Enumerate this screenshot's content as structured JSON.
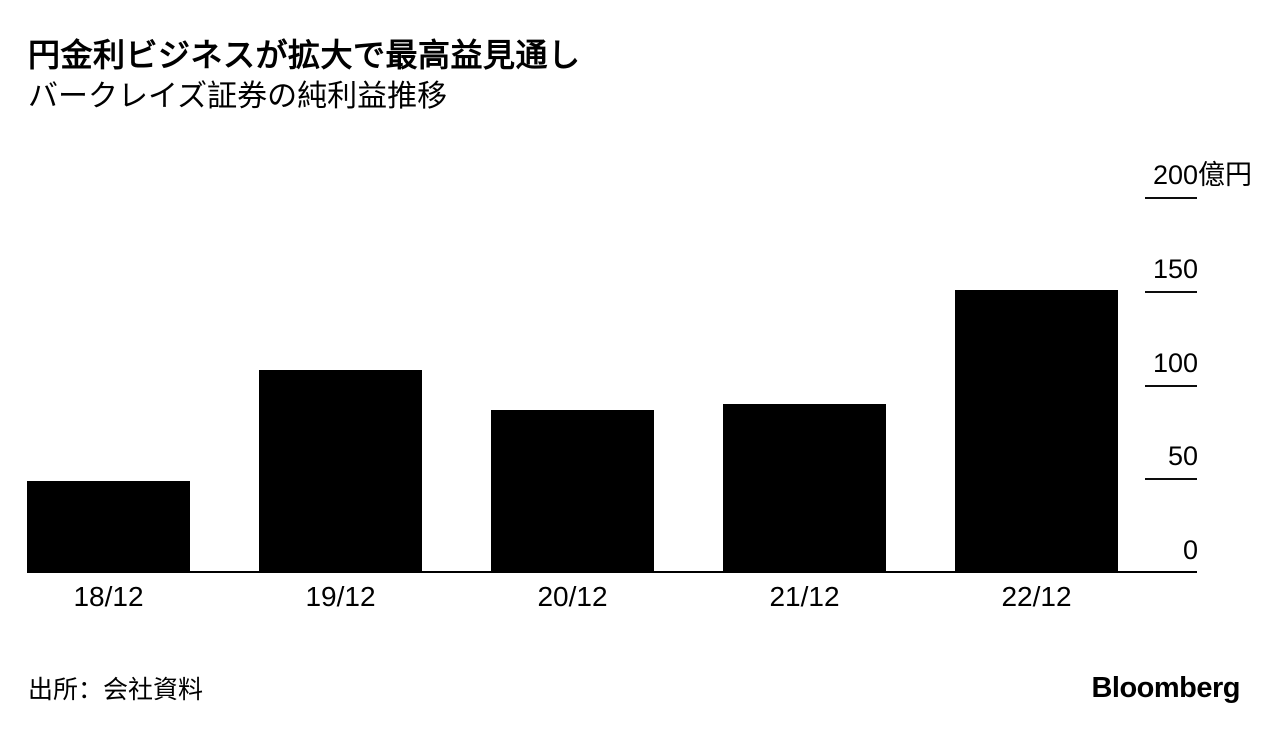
{
  "header": {
    "title": "円金利ビジネスが拡大で最高益見通し",
    "subtitle": "バークレイズ証券の純利益推移"
  },
  "footer": {
    "source": "出所：会社資料",
    "brand": "Bloomberg"
  },
  "colors": {
    "bar": "#000000",
    "axis": "#000000",
    "background": "#ffffff",
    "text": "#000000"
  },
  "chart_data": {
    "type": "bar",
    "title": "円金利ビジネスが拡大で最高益見通し",
    "subtitle": "バークレイズ証券の純利益推移",
    "categories": [
      "18/12",
      "19/12",
      "20/12",
      "21/12",
      "22/12"
    ],
    "values": [
      49,
      108,
      87,
      90,
      151
    ],
    "unit": "億円",
    "xlabel": "",
    "ylabel": "億円",
    "ylim": [
      0,
      200
    ],
    "yticks": [
      0,
      50,
      100,
      150,
      200
    ],
    "ytick_labels": [
      {
        "num": "0",
        "unit": ""
      },
      {
        "num": "50",
        "unit": ""
      },
      {
        "num": "100",
        "unit": ""
      },
      {
        "num": "150",
        "unit": ""
      },
      {
        "num": "200",
        "unit": "億円"
      }
    ],
    "grid": false,
    "legend": "none",
    "axis_side": "right",
    "bar_color": "#000000"
  }
}
